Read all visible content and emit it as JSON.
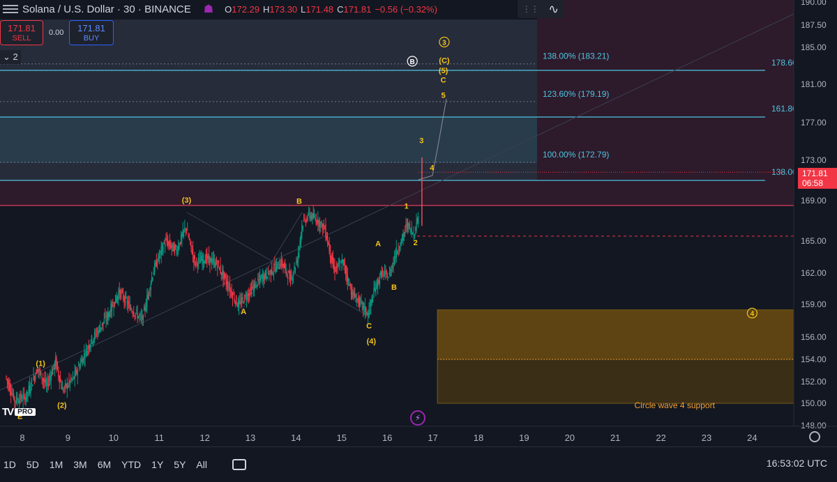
{
  "header": {
    "symbol": "Solana / U.S. Dollar · 30 · BINANCE",
    "open_label": "O",
    "open": "172.29",
    "high_label": "H",
    "high": "173.30",
    "low_label": "L",
    "low": "171.48",
    "close_label": "C",
    "close": "171.81",
    "change": "−0.56 (−0.32%)"
  },
  "trade": {
    "sell_price": "171.81",
    "sell_label": "SELL",
    "spread": "0.00",
    "buy_price": "171.81",
    "buy_label": "BUY"
  },
  "layers_label": "2",
  "last_price": {
    "value": "171.81",
    "countdown": "06:58"
  },
  "bottom": {
    "ranges": [
      "1D",
      "5D",
      "1M",
      "3M",
      "6M",
      "YTD",
      "1Y",
      "5Y",
      "All"
    ],
    "clock": "16:53:02 UTC"
  },
  "colors": {
    "up": "#089981",
    "down": "#f23645",
    "fib": "#4dc6e0",
    "wave": "#f5c518",
    "support": "#f0a030"
  },
  "chart_data": {
    "type": "candlestick",
    "title": "",
    "x_ticks": [
      "8",
      "9",
      "10",
      "11",
      "12",
      "13",
      "14",
      "15",
      "16",
      "17",
      "18",
      "19",
      "20",
      "21",
      "22",
      "23",
      "24"
    ],
    "x_tick_days": [
      8,
      9,
      10,
      11,
      12,
      13,
      14,
      15,
      16,
      17,
      18,
      19,
      20,
      21,
      22,
      23,
      24
    ],
    "y_ticks": [
      190.0,
      187.5,
      185.0,
      181.0,
      177.0,
      173.0,
      169.0,
      165.0,
      162.0,
      159.0,
      156.0,
      154.0,
      152.0,
      150.0,
      148.0
    ],
    "y_tick_labels": [
      "190.00",
      "187.50",
      "185.00",
      "181.00",
      "177.00",
      "173.00",
      "169.00",
      "165.00",
      "162.00",
      "159.00",
      "156.00",
      "154.00",
      "152.00",
      "150.00",
      "148.00"
    ],
    "price_path": [
      [
        7.65,
        152.5
      ],
      [
        7.85,
        150.3
      ],
      [
        8.1,
        150.6
      ],
      [
        8.35,
        153.2
      ],
      [
        8.55,
        151.6
      ],
      [
        8.75,
        153.8
      ],
      [
        8.9,
        151.2
      ],
      [
        9.15,
        152.4
      ],
      [
        9.5,
        155.5
      ],
      [
        9.9,
        158.0
      ],
      [
        10.15,
        160.2
      ],
      [
        10.4,
        158.6
      ],
      [
        10.65,
        157.6
      ],
      [
        10.9,
        162.3
      ],
      [
        11.15,
        165.0
      ],
      [
        11.4,
        164.1
      ],
      [
        11.6,
        166.4
      ],
      [
        11.8,
        163.0
      ],
      [
        12.05,
        163.4
      ],
      [
        12.3,
        162.8
      ],
      [
        12.55,
        160.6
      ],
      [
        12.75,
        158.9
      ],
      [
        13.0,
        160.2
      ],
      [
        13.25,
        161.5
      ],
      [
        13.45,
        162.1
      ],
      [
        13.7,
        163.0
      ],
      [
        13.9,
        161.4
      ],
      [
        14.05,
        163.3
      ],
      [
        14.15,
        166.6
      ],
      [
        14.3,
        167.6
      ],
      [
        14.5,
        167.0
      ],
      [
        14.65,
        166.2
      ],
      [
        14.85,
        162.3
      ],
      [
        15.05,
        163.0
      ],
      [
        15.25,
        160.0
      ],
      [
        15.45,
        159.0
      ],
      [
        15.6,
        158.1
      ],
      [
        15.75,
        160.5
      ],
      [
        15.9,
        162.0
      ],
      [
        16.05,
        161.6
      ],
      [
        16.2,
        163.8
      ],
      [
        16.35,
        165.2
      ],
      [
        16.45,
        166.7
      ],
      [
        16.6,
        165.7
      ],
      [
        16.7,
        167.5
      ],
      [
        16.76,
        172.4
      ],
      [
        16.8,
        171.81
      ]
    ],
    "last_price": 171.81,
    "fib_levels": [
      {
        "label": "138.00% (183.21)",
        "value": 183.21
      },
      {
        "label": "123.60% (179.19)",
        "value": 179.19
      },
      {
        "label": "100.00% (172.79)",
        "value": 172.79
      }
    ],
    "fib_levels_right": [
      {
        "label": "178.60",
        "value": 178.6
      },
      {
        "label": "161.80",
        "value": 161.8
      },
      {
        "label": "138.00",
        "value": 138.0
      }
    ],
    "wave_labels": [
      {
        "text": "(1)",
        "x": 8.4,
        "y": 153.4
      },
      {
        "text": "(2)",
        "x": 8.87,
        "y": 149.6
      },
      {
        "text": "(3)",
        "x": 11.6,
        "y": 168.8
      },
      {
        "text": "(4)",
        "x": 15.65,
        "y": 155.4
      },
      {
        "text": "A",
        "x": 12.85,
        "y": 158.1
      },
      {
        "text": "B",
        "x": 14.07,
        "y": 168.7
      },
      {
        "text": "A",
        "x": 15.8,
        "y": 164.5
      },
      {
        "text": "B",
        "x": 16.15,
        "y": 160.4
      },
      {
        "text": "C",
        "x": 15.6,
        "y": 156.8
      },
      {
        "text": "E",
        "x": 7.95,
        "y": 148.6
      },
      {
        "text": "1",
        "x": 16.42,
        "y": 168.2
      },
      {
        "text": "2",
        "x": 16.62,
        "y": 164.6
      },
      {
        "text": "3",
        "x": 16.75,
        "y": 174.8
      },
      {
        "text": "4",
        "x": 16.98,
        "y": 172.0
      },
      {
        "text": "5",
        "x": 17.23,
        "y": 179.6
      },
      {
        "text": "C",
        "x": 17.23,
        "y": 181.2
      },
      {
        "text": "(5)",
        "x": 17.23,
        "y": 182.2
      },
      {
        "text": "(C)",
        "x": 17.25,
        "y": 183.3
      }
    ],
    "circle_labels": [
      {
        "text": "3",
        "x": 17.25,
        "y": 185.6,
        "color": "#f5c518"
      },
      {
        "text": "B",
        "x": 16.55,
        "y": 183.5,
        "color": "#ffffff"
      },
      {
        "text": "4",
        "x": 24.0,
        "y": 158.2,
        "color": "#f5c518"
      }
    ],
    "support_zone": {
      "x_start": 17.1,
      "x_end": 25.0,
      "top": 158.5,
      "bottom": 150.0,
      "mid": 154.0
    },
    "annotations": [
      {
        "text": "Circle wave 4 support",
        "x": 22.3,
        "y": 149.8
      }
    ]
  }
}
